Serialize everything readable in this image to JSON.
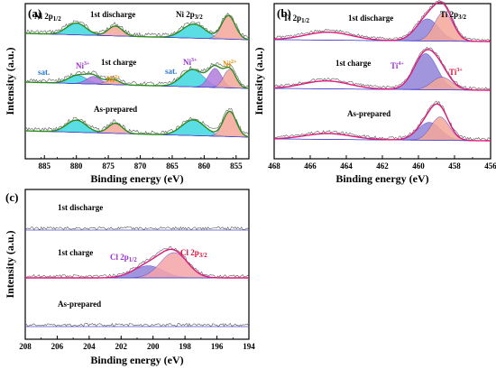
{
  "colors": {
    "ni_envelope": "#2e8b1f",
    "ti_envelope": "#e0187a",
    "cl_envelope": "#e0187a",
    "raw_trace": "#555555",
    "ni_fill_main": "#f3a798",
    "ni_fill_sat": "#3ed8de",
    "ni_fill_3plus": "#b07bdc",
    "ti_fill_3plus": "#f3a798",
    "ti_fill_4plus": "#9184d8",
    "cl_fill_2p32": "#f5a3a8",
    "cl_fill_2p12": "#9184d8",
    "label_blue": "#2c7bd3",
    "label_purple": "#9b2fd1",
    "label_orange": "#e68a00",
    "label_red": "#e0103a"
  },
  "chart_data": [
    {
      "panel": "(a)",
      "type": "line",
      "title": "",
      "xlabel": "Binding energy (eV)",
      "ylabel": "Intensity (a.u.)",
      "xlim": [
        888,
        853
      ],
      "x_reversed": true,
      "x_ticks": [
        885,
        880,
        875,
        870,
        865,
        860,
        855
      ],
      "spectra": [
        {
          "name": "1st discharge",
          "labels": [
            "Ni 2p1/2",
            "Ni 2p3/2"
          ],
          "peaks": [
            {
              "center": 880.0,
              "height": 0.5,
              "fwhm": 3.6,
              "fill": "ni_fill_sat"
            },
            {
              "center": 873.9,
              "height": 0.42,
              "fwhm": 2.6,
              "fill": "ni_fill_main"
            },
            {
              "center": 861.6,
              "height": 0.6,
              "fwhm": 4.2,
              "fill": "ni_fill_sat"
            },
            {
              "center": 856.2,
              "height": 1.0,
              "fwhm": 2.5,
              "fill": "ni_fill_main"
            }
          ]
        },
        {
          "name": "1st charge",
          "labels": [
            "sat.",
            "Ni3+",
            "Ni2+",
            "sat.",
            "Ni3+",
            "Ni2+"
          ],
          "peaks": [
            {
              "center": 879.8,
              "height": 0.38,
              "fwhm": 3.4,
              "fill": "ni_fill_sat"
            },
            {
              "center": 877.3,
              "height": 0.35,
              "fwhm": 2.6,
              "fill": "ni_fill_3plus"
            },
            {
              "center": 874.3,
              "height": 0.24,
              "fwhm": 2.4,
              "fill": "ni_fill_main"
            },
            {
              "center": 861.8,
              "height": 0.8,
              "fwhm": 4.0,
              "fill": "ni_fill_sat"
            },
            {
              "center": 858.3,
              "height": 0.88,
              "fwhm": 2.4,
              "fill": "ni_fill_3plus"
            },
            {
              "center": 856.0,
              "height": 0.86,
              "fwhm": 2.2,
              "fill": "ni_fill_main"
            }
          ]
        },
        {
          "name": "As-prepared",
          "labels": [],
          "peaks": [
            {
              "center": 880.0,
              "height": 0.48,
              "fwhm": 3.6,
              "fill": "ni_fill_sat"
            },
            {
              "center": 873.9,
              "height": 0.4,
              "fwhm": 2.6,
              "fill": "ni_fill_main"
            },
            {
              "center": 861.7,
              "height": 0.62,
              "fwhm": 4.2,
              "fill": "ni_fill_sat"
            },
            {
              "center": 856.0,
              "height": 1.0,
              "fwhm": 2.4,
              "fill": "ni_fill_main"
            }
          ]
        }
      ]
    },
    {
      "panel": "(b)",
      "type": "line",
      "title": "",
      "xlabel": "Binding energy (eV)",
      "ylabel": "Intensity (a.u.)",
      "xlim": [
        468,
        456
      ],
      "x_reversed": true,
      "x_ticks": [
        468,
        466,
        464,
        462,
        460,
        458,
        456
      ],
      "spectra": [
        {
          "name": "1st discharge",
          "labels": [
            "Ti 2p1/2",
            "Ti 2p3/2"
          ],
          "peaks": [
            {
              "center": 465.0,
              "height": 0.26,
              "fwhm": 3.0,
              "fill": ""
            },
            {
              "center": 459.5,
              "height": 0.72,
              "fwhm": 1.5,
              "fill": "ti_fill_4plus"
            },
            {
              "center": 458.6,
              "height": 0.95,
              "fwhm": 1.2,
              "fill": "ti_fill_3plus"
            }
          ]
        },
        {
          "name": "1st charge",
          "labels": [
            "Ti4+",
            "Ti3+"
          ],
          "peaks": [
            {
              "center": 465.1,
              "height": 0.22,
              "fwhm": 3.0,
              "fill": ""
            },
            {
              "center": 459.6,
              "height": 1.0,
              "fwhm": 1.5,
              "fill": "ti_fill_4plus"
            },
            {
              "center": 458.7,
              "height": 0.35,
              "fwhm": 1.3,
              "fill": "ti_fill_3plus"
            }
          ]
        },
        {
          "name": "As-prepared",
          "labels": [],
          "peaks": [
            {
              "center": 465.0,
              "height": 0.18,
              "fwhm": 3.0,
              "fill": ""
            },
            {
              "center": 459.4,
              "height": 0.55,
              "fwhm": 1.5,
              "fill": "ti_fill_4plus"
            },
            {
              "center": 458.8,
              "height": 0.72,
              "fwhm": 1.2,
              "fill": "ti_fill_3plus"
            }
          ]
        }
      ]
    },
    {
      "panel": "(c)",
      "type": "line",
      "title": "",
      "xlabel": "Binding energy (eV)",
      "ylabel": "Intensity (a.u.)",
      "xlim": [
        208,
        194
      ],
      "x_reversed": true,
      "x_ticks": [
        208,
        206,
        204,
        202,
        200,
        198,
        196,
        194
      ],
      "spectra": [
        {
          "name": "1st discharge",
          "labels": [],
          "peaks": []
        },
        {
          "name": "1st charge",
          "labels": [
            "Cl 2p1/2",
            "Cl 2p3/2"
          ],
          "peaks": [
            {
              "center": 200.3,
              "height": 0.48,
              "fwhm": 2.2,
              "fill": "cl_fill_2p12"
            },
            {
              "center": 198.7,
              "height": 1.0,
              "fwhm": 2.0,
              "fill": "cl_fill_2p32"
            }
          ]
        },
        {
          "name": "As-prepared",
          "labels": [],
          "peaks": []
        }
      ]
    }
  ]
}
